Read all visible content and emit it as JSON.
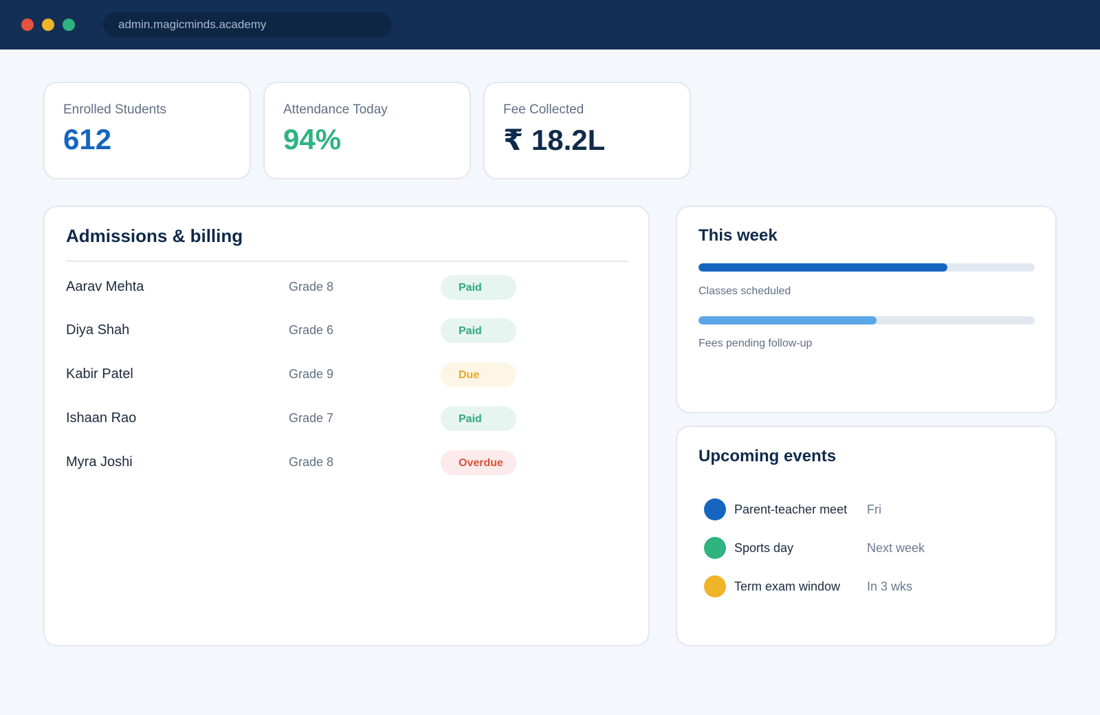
{
  "colors": {
    "window_controls": {
      "close": "#e5533d",
      "minimize": "#f0b429",
      "maximize": "#2fb380"
    },
    "blue": "#1565c0",
    "green": "#2fb380",
    "navy": "#0f2a4a",
    "light_blue": "#5aa7e8",
    "yellow": "#f0b429",
    "red": "#d6553e"
  },
  "browser": {
    "url": "admin.magicminds.academy"
  },
  "stats": [
    {
      "label": "Enrolled Students",
      "value": "612",
      "color": "#1565c0"
    },
    {
      "label": "Attendance Today",
      "value": "94%",
      "color": "#2fb380"
    },
    {
      "label": "Fee Collected",
      "value": "₹ 18.2L",
      "color": "#0f2a4a"
    }
  ],
  "admissions": {
    "title": "Admissions & billing",
    "rows": [
      {
        "name": "Aarav Mehta",
        "grade": "Grade 8",
        "status": "Paid",
        "status_color": "#2fa879",
        "status_bg": "#e6f5ef"
      },
      {
        "name": "Diya Shah",
        "grade": "Grade 6",
        "status": "Paid",
        "status_color": "#2fa879",
        "status_bg": "#e6f5ef"
      },
      {
        "name": "Kabir Patel",
        "grade": "Grade 9",
        "status": "Due",
        "status_color": "#e6a92a",
        "status_bg": "#fdf5e6"
      },
      {
        "name": "Ishaan Rao",
        "grade": "Grade 7",
        "status": "Paid",
        "status_color": "#2fa879",
        "status_bg": "#e6f5ef"
      },
      {
        "name": "Myra Joshi",
        "grade": "Grade 8",
        "status": "Overdue",
        "status_color": "#d6553e",
        "status_bg": "#fdeaea"
      }
    ]
  },
  "this_week": {
    "title": "This week",
    "bars": [
      {
        "label": "Classes scheduled",
        "progress": 0.74,
        "color": "#1565c0"
      },
      {
        "label": "Fees pending follow-up",
        "progress": 0.53,
        "color": "#5aa7e8"
      }
    ]
  },
  "events": {
    "title": "Upcoming events",
    "items": [
      {
        "name": "Parent-teacher meet",
        "when": "Fri",
        "color": "#1565c0"
      },
      {
        "name": "Sports day",
        "when": "Next week",
        "color": "#2fb380"
      },
      {
        "name": "Term exam window",
        "when": "In 3 wks",
        "color": "#f0b429"
      }
    ]
  }
}
